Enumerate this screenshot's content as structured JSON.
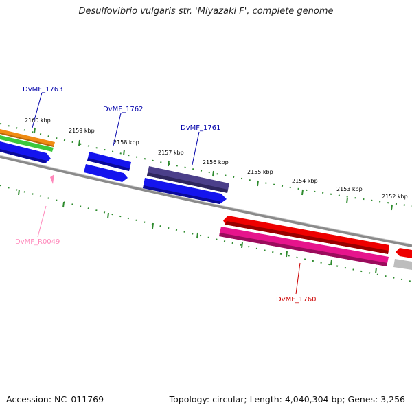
{
  "title": "Desulfovibrio vulgaris str. 'Miyazaki F', complete genome",
  "footer": {
    "accession": "Accession: NC_011769",
    "summary": "Topology: circular; Length: 4,040,304 bp; Genes: 3,256"
  },
  "colors": {
    "backbone": "#8a8a8a",
    "tick_dots": "#2e8b2e",
    "blue_gene": "#1414ee",
    "navy_gene": "#4b3f8a",
    "red_gene": "#ee0000",
    "magenta_gene": "#e6148c",
    "orange_gene": "#f08c14",
    "green_gene": "#3cc83c",
    "grey_gene": "#bdbdbd",
    "label_blue": "#0000aa",
    "label_red": "#cc0000",
    "label_pink": "#ff88bb"
  },
  "ticks": [
    {
      "kbp": 2160,
      "label": "2160 kbp"
    },
    {
      "kbp": 2159,
      "label": "2159 kbp"
    },
    {
      "kbp": 2158,
      "label": "2158 kbp"
    },
    {
      "kbp": 2157,
      "label": "2157 kbp"
    },
    {
      "kbp": 2156,
      "label": "2156 kbp"
    },
    {
      "kbp": 2155,
      "label": "2155 kbp"
    },
    {
      "kbp": 2154,
      "label": "2154 kbp"
    },
    {
      "kbp": 2153,
      "label": "2153 kbp"
    },
    {
      "kbp": 2152,
      "label": "2152 kbp"
    }
  ],
  "gene_labels": [
    {
      "id": "DvMF_1763",
      "text": "DvMF_1763",
      "color": "label_blue"
    },
    {
      "id": "DvMF_1762",
      "text": "DvMF_1762",
      "color": "label_blue"
    },
    {
      "id": "DvMF_1761",
      "text": "DvMF_1761",
      "color": "label_blue"
    },
    {
      "id": "DvMF_1760",
      "text": "DvMF_1760",
      "color": "label_red"
    },
    {
      "id": "DvMF_R0049",
      "text": "DvMF_R0049",
      "color": "label_pink"
    }
  ]
}
